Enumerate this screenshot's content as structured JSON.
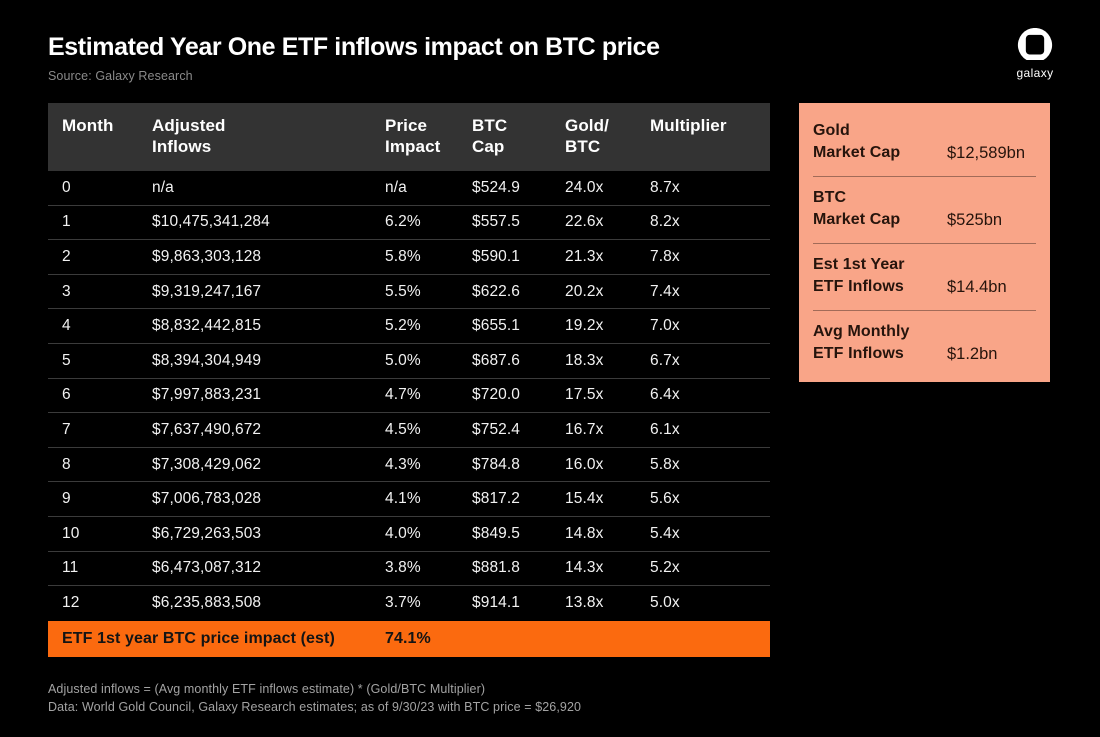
{
  "header": {
    "title": "Estimated Year One ETF inflows impact on BTC price",
    "source": "Source: Galaxy Research",
    "logo_text": "galaxy"
  },
  "chart_data": {
    "type": "table",
    "title": "Estimated Year One ETF inflows impact on BTC price",
    "columns": [
      "Month",
      "Adjusted Inflows",
      "Price Impact",
      "BTC Cap",
      "Gold/BTC",
      "Multiplier"
    ],
    "column_lines": [
      [
        "Month"
      ],
      [
        "Adjusted",
        "Inflows"
      ],
      [
        "Price",
        "Impact"
      ],
      [
        "BTC",
        "Cap"
      ],
      [
        "Gold/",
        "BTC"
      ],
      [
        "Multiplier"
      ]
    ],
    "rows": [
      [
        "0",
        "n/a",
        "n/a",
        "$524.9",
        "24.0x",
        "8.7x"
      ],
      [
        "1",
        "$10,475,341,284",
        "6.2%",
        "$557.5",
        "22.6x",
        "8.2x"
      ],
      [
        "2",
        "$9,863,303,128",
        "5.8%",
        "$590.1",
        "21.3x",
        "7.8x"
      ],
      [
        "3",
        "$9,319,247,167",
        "5.5%",
        "$622.6",
        "20.2x",
        "7.4x"
      ],
      [
        "4",
        "$8,832,442,815",
        "5.2%",
        "$655.1",
        "19.2x",
        "7.0x"
      ],
      [
        "5",
        "$8,394,304,949",
        "5.0%",
        "$687.6",
        "18.3x",
        "6.7x"
      ],
      [
        "6",
        "$7,997,883,231",
        "4.7%",
        "$720.0",
        "17.5x",
        "6.4x"
      ],
      [
        "7",
        "$7,637,490,672",
        "4.5%",
        "$752.4",
        "16.7x",
        "6.1x"
      ],
      [
        "8",
        "$7,308,429,062",
        "4.3%",
        "$784.8",
        "16.0x",
        "5.8x"
      ],
      [
        "9",
        "$7,006,783,028",
        "4.1%",
        "$817.2",
        "15.4x",
        "5.6x"
      ],
      [
        "10",
        "$6,729,263,503",
        "4.0%",
        "$849.5",
        "14.8x",
        "5.4x"
      ],
      [
        "11",
        "$6,473,087,312",
        "3.8%",
        "$881.8",
        "14.3x",
        "5.2x"
      ],
      [
        "12",
        "$6,235,883,508",
        "3.7%",
        "$914.1",
        "13.8x",
        "5.0x"
      ]
    ],
    "summary_row": {
      "label": "ETF 1st year BTC price impact (est)",
      "value": "74.1%"
    },
    "side_stats": [
      {
        "label_lines": [
          "Gold",
          "Market Cap"
        ],
        "value": "$12,589bn"
      },
      {
        "label_lines": [
          "BTC",
          "Market Cap"
        ],
        "value": "$525bn"
      },
      {
        "label_lines": [
          "Est 1st Year",
          "ETF Inflows"
        ],
        "value": "$14.4bn"
      },
      {
        "label_lines": [
          "Avg Monthly",
          "ETF Inflows"
        ],
        "value": "$1.2bn"
      }
    ]
  },
  "footnotes": [
    "Adjusted inflows = (Avg monthly ETF inflows estimate) * (Gold/BTC Multiplier)",
    "Data: World Gold Council, Galaxy Research estimates; as of 9/30/23 with BTC price = $26,920"
  ],
  "colors": {
    "background": "#000000",
    "table_header_bg": "#333333",
    "row_divider": "#3B3B3B",
    "accent_orange": "#FB6A0F",
    "panel_salmon": "#F9A588",
    "panel_text": "#26140C",
    "text_primary": "#FFFFFF",
    "text_muted": "#A3A3A3"
  }
}
